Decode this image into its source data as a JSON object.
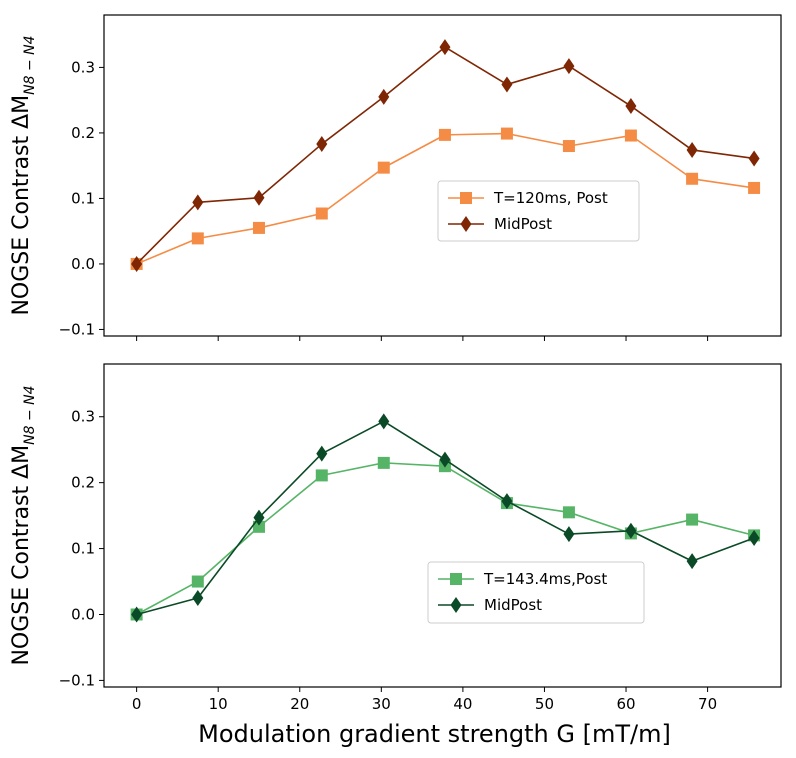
{
  "chart_data": [
    {
      "type": "line",
      "panel": "top",
      "ylabel_main": "NOGSE Contrast ΔM",
      "ylabel_subscript": "N8 − N4",
      "xlabel": "",
      "xlim": [
        -4,
        79
      ],
      "ylim": [
        -0.11,
        0.38
      ],
      "xticks": [
        0,
        10,
        20,
        30,
        40,
        50,
        60,
        70
      ],
      "xtick_labels_visible": false,
      "yticks": [
        -0.1,
        0.0,
        0.1,
        0.2,
        0.3
      ],
      "ytick_labels": [
        "−0.1",
        "0.0",
        "0.1",
        "0.2",
        "0.3"
      ],
      "legend_position": "center-right",
      "grid": false,
      "x": [
        0,
        7.5,
        15,
        22.7,
        30.3,
        37.8,
        45.4,
        53,
        60.6,
        68.1,
        75.7
      ],
      "series": [
        {
          "name": "T=120ms, Post",
          "marker": "square",
          "color": "#f58c45",
          "values": [
            0.0,
            0.039,
            0.055,
            0.077,
            0.147,
            0.197,
            0.199,
            0.18,
            0.196,
            0.13,
            0.116
          ]
        },
        {
          "name": "MidPost",
          "marker": "diamond",
          "color": "#7f2704",
          "values": [
            0.0,
            0.094,
            0.101,
            0.183,
            0.255,
            0.331,
            0.274,
            0.302,
            0.241,
            0.174,
            0.161
          ]
        }
      ]
    },
    {
      "type": "line",
      "panel": "bottom",
      "ylabel_main": "NOGSE Contrast ΔM",
      "ylabel_subscript": "N8 − N4",
      "xlabel": "Modulation gradient strength G [mT/m]",
      "xlim": [
        -4,
        79
      ],
      "ylim": [
        -0.11,
        0.38
      ],
      "xticks": [
        0,
        10,
        20,
        30,
        40,
        50,
        60,
        70
      ],
      "xtick_labels": [
        "0",
        "10",
        "20",
        "30",
        "40",
        "50",
        "60",
        "70"
      ],
      "yticks": [
        -0.1,
        0.0,
        0.1,
        0.2,
        0.3
      ],
      "ytick_labels": [
        "−0.1",
        "0.0",
        "0.1",
        "0.2",
        "0.3"
      ],
      "legend_position": "lower-right",
      "grid": false,
      "x": [
        0,
        7.5,
        15,
        22.7,
        30.3,
        37.8,
        45.4,
        53,
        60.6,
        68.1,
        75.7
      ],
      "series": [
        {
          "name": "T=143.4ms,Post",
          "marker": "square",
          "color": "#56b466",
          "values": [
            0.0,
            0.05,
            0.133,
            0.211,
            0.23,
            0.225,
            0.169,
            0.155,
            0.123,
            0.144,
            0.12
          ]
        },
        {
          "name": "MidPost",
          "marker": "diamond",
          "color": "#0b4a26",
          "values": [
            0.0,
            0.025,
            0.147,
            0.244,
            0.293,
            0.235,
            0.172,
            0.122,
            0.127,
            0.081,
            0.116
          ]
        }
      ]
    }
  ]
}
